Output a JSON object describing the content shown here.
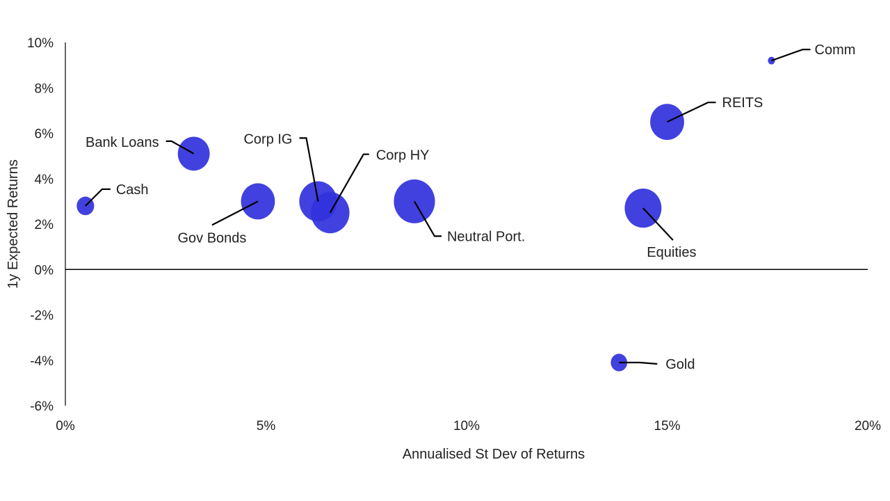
{
  "chart_data": {
    "type": "bubble",
    "title": "",
    "xlabel": "Annualised St Dev of Returns",
    "ylabel": "1y Expected Returns",
    "xlim": [
      0,
      20
    ],
    "ylim": [
      -6,
      10
    ],
    "x_ticks": [
      "0%",
      "5%",
      "10%",
      "15%",
      "20%"
    ],
    "y_ticks": [
      "10%",
      "8%",
      "6%",
      "4%",
      "2%",
      "0%",
      "-2%",
      "-4%",
      "-6%"
    ],
    "grid": false,
    "bubble_color": "#3333dd",
    "points": [
      {
        "label": "Cash",
        "x": 0.5,
        "y": 2.8,
        "size": 9
      },
      {
        "label": "Bank Loans",
        "x": 3.2,
        "y": 5.1,
        "size": 30
      },
      {
        "label": "Gov Bonds",
        "x": 4.8,
        "y": 3.0,
        "size": 34
      },
      {
        "label": "Corp IG",
        "x": 6.3,
        "y": 3.0,
        "size": 42
      },
      {
        "label": "Corp HY",
        "x": 6.6,
        "y": 2.5,
        "size": 44
      },
      {
        "label": "Neutral Port.",
        "x": 8.7,
        "y": 3.0,
        "size": 50
      },
      {
        "label": "Equities",
        "x": 14.4,
        "y": 2.7,
        "size": 40
      },
      {
        "label": "REITS",
        "x": 15.0,
        "y": 6.5,
        "size": 34
      },
      {
        "label": "Comm",
        "x": 17.6,
        "y": 9.2,
        "size": 1.5
      },
      {
        "label": "Gold",
        "x": 13.8,
        "y": -4.1,
        "size": 8
      }
    ]
  }
}
